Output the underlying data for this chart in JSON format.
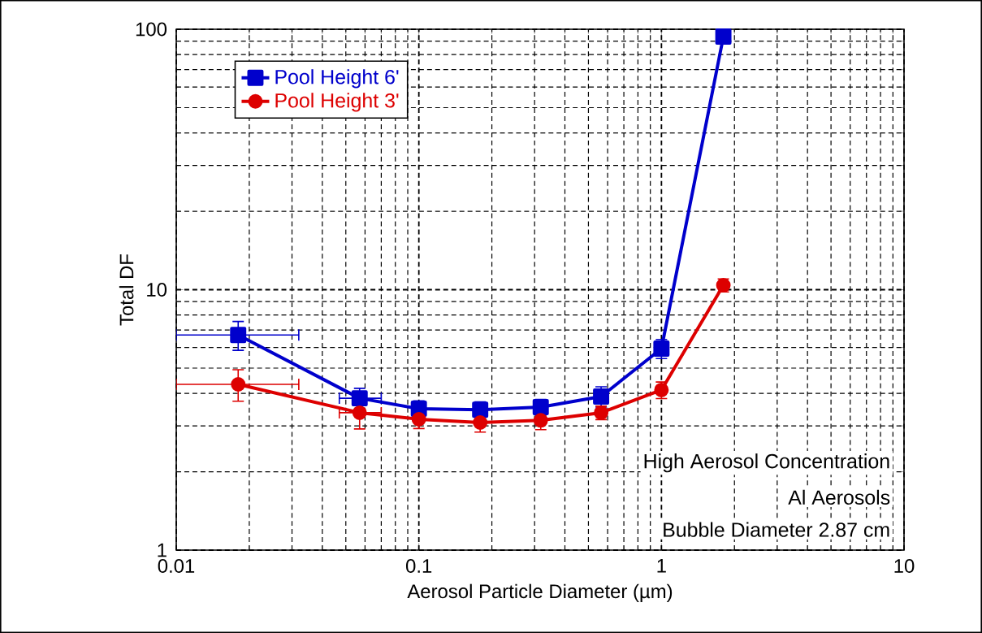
{
  "chart_data": {
    "type": "line",
    "xlabel": "Aerosol Particle Diameter (µm)",
    "ylabel": "Total DF",
    "log": "xy",
    "grid": true,
    "legend": "top left",
    "line_style": "solid",
    "xlim": [
      0.01,
      10
    ],
    "ylim": [
      1,
      100
    ],
    "xticks": [
      0.01,
      0.1,
      1,
      10
    ],
    "yticks": [
      1,
      10,
      100
    ],
    "x": [
      0.018,
      0.057,
      0.1,
      0.179,
      0.318,
      0.564,
      1.0,
      1.8
    ],
    "series": [
      {
        "name": "Pool Height 6'",
        "color": "#0000cc",
        "marker": "square",
        "values": [
          6.7,
          3.83,
          3.49,
          3.46,
          3.54,
          3.89,
          5.94,
          93.7
        ],
        "errors": [
          0.85,
          0.35,
          0.25,
          0.25,
          0.25,
          0.35,
          0.5,
          null
        ],
        "xerrors": [
          [
            0.01,
            0.032
          ],
          [
            0.047,
            0.07
          ],
          null,
          null,
          null,
          null,
          null,
          null
        ]
      },
      {
        "name": "Pool Height 3'",
        "color": "#dd0000",
        "marker": "circle",
        "values": [
          4.33,
          3.37,
          3.18,
          3.09,
          3.15,
          3.37,
          4.12,
          10.4
        ],
        "errors": [
          0.6,
          0.45,
          0.25,
          0.25,
          0.25,
          0.2,
          0.3,
          0.6
        ],
        "xerrors": [
          [
            0.01,
            0.032
          ],
          [
            0.047,
            0.07
          ],
          null,
          null,
          null,
          null,
          null,
          null
        ]
      }
    ],
    "annotations": [
      "High Aerosol Concentration",
      "Al Aerosols",
      "Bubble Diameter 2.87 cm"
    ]
  }
}
